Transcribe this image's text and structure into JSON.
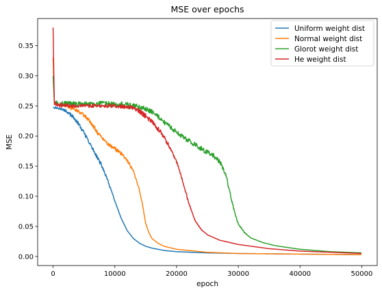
{
  "chart_data": {
    "type": "line",
    "title": "MSE over epochs",
    "xlabel": "epoch",
    "ylabel": "MSE",
    "xlim": [
      -2500,
      52500
    ],
    "ylim": [
      -0.015,
      0.395
    ],
    "xticks": [
      0,
      10000,
      20000,
      30000,
      40000,
      50000
    ],
    "yticks": [
      0.0,
      0.05,
      0.1,
      0.15,
      0.2,
      0.25,
      0.3,
      0.35
    ],
    "xtick_labels": [
      "0",
      "10000",
      "20000",
      "30000",
      "40000",
      "50000"
    ],
    "ytick_labels": [
      "0.00",
      "0.05",
      "0.10",
      "0.15",
      "0.20",
      "0.25",
      "0.30",
      "0.35"
    ],
    "grid": false,
    "legend_position": "top-right",
    "series": [
      {
        "name": "Uniform weight dist",
        "color": "#1f77b4",
        "x": [
          0,
          1000,
          2000,
          3000,
          4000,
          5000,
          6000,
          7000,
          8000,
          9000,
          10000,
          11000,
          12000,
          13000,
          14000,
          15000,
          16000,
          18000,
          20000,
          25000,
          30000,
          40000,
          50000
        ],
        "y": [
          0.248,
          0.246,
          0.242,
          0.234,
          0.222,
          0.205,
          0.186,
          0.168,
          0.148,
          0.122,
          0.092,
          0.064,
          0.043,
          0.03,
          0.022,
          0.017,
          0.014,
          0.01,
          0.008,
          0.006,
          0.005,
          0.004,
          0.003
        ],
        "noise": [
          0.002,
          0.002,
          0.002,
          0.003,
          0.003,
          0.003,
          0.003,
          0.003,
          0.003,
          0.002,
          0.001,
          0.0005,
          0,
          0,
          0,
          0,
          0,
          0,
          0,
          0,
          0,
          0,
          0
        ]
      },
      {
        "name": "Normal weight dist",
        "color": "#ff7f0e",
        "x": [
          0,
          200,
          1000,
          2000,
          3000,
          4000,
          5000,
          6000,
          7000,
          8000,
          9000,
          10000,
          11000,
          12000,
          13000,
          14000,
          14500,
          15000,
          15500,
          16000,
          17000,
          18000,
          20000,
          25000,
          30000,
          40000,
          50000
        ],
        "y": [
          0.33,
          0.255,
          0.252,
          0.25,
          0.247,
          0.242,
          0.235,
          0.224,
          0.208,
          0.196,
          0.186,
          0.179,
          0.171,
          0.16,
          0.142,
          0.11,
          0.085,
          0.055,
          0.04,
          0.03,
          0.022,
          0.017,
          0.012,
          0.007,
          0.005,
          0.004,
          0.003
        ],
        "noise": [
          0,
          0.002,
          0.002,
          0.002,
          0.003,
          0.003,
          0.003,
          0.003,
          0.003,
          0.003,
          0.003,
          0.003,
          0.003,
          0.003,
          0.002,
          0.002,
          0.001,
          0.001,
          0,
          0,
          0,
          0,
          0,
          0,
          0,
          0,
          0
        ]
      },
      {
        "name": "Glorot weight dist",
        "color": "#2ca02c",
        "x": [
          0,
          200,
          1000,
          5000,
          10000,
          13000,
          15000,
          16000,
          17000,
          18000,
          20000,
          22000,
          24000,
          26000,
          27000,
          28000,
          28500,
          29000,
          29500,
          30000,
          31000,
          32000,
          34000,
          36000,
          40000,
          45000,
          50000
        ],
        "y": [
          0.3,
          0.256,
          0.254,
          0.253,
          0.253,
          0.251,
          0.245,
          0.24,
          0.232,
          0.223,
          0.206,
          0.192,
          0.179,
          0.167,
          0.157,
          0.135,
          0.112,
          0.09,
          0.07,
          0.054,
          0.04,
          0.031,
          0.023,
          0.018,
          0.012,
          0.008,
          0.006
        ],
        "noise": [
          0,
          0.003,
          0.004,
          0.004,
          0.005,
          0.004,
          0.004,
          0.004,
          0.004,
          0.004,
          0.004,
          0.004,
          0.004,
          0.004,
          0.004,
          0.003,
          0.003,
          0.002,
          0.002,
          0.001,
          0.001,
          0,
          0,
          0,
          0,
          0,
          0
        ]
      },
      {
        "name": "He weight dist",
        "color": "#d62728",
        "x": [
          0,
          200,
          1000,
          5000,
          10000,
          13000,
          14000,
          15000,
          16000,
          17000,
          18000,
          19000,
          20000,
          21000,
          22000,
          23000,
          24000,
          25000,
          27000,
          30000,
          35000,
          40000,
          45000,
          50000
        ],
        "y": [
          0.38,
          0.253,
          0.251,
          0.25,
          0.25,
          0.247,
          0.241,
          0.233,
          0.224,
          0.212,
          0.197,
          0.18,
          0.158,
          0.125,
          0.088,
          0.06,
          0.045,
          0.036,
          0.027,
          0.02,
          0.013,
          0.009,
          0.007,
          0.005
        ],
        "noise": [
          0,
          0.003,
          0.003,
          0.003,
          0.003,
          0.003,
          0.004,
          0.004,
          0.004,
          0.004,
          0.004,
          0.003,
          0.003,
          0.002,
          0.002,
          0.001,
          0.001,
          0,
          0,
          0,
          0,
          0,
          0,
          0
        ]
      }
    ]
  }
}
